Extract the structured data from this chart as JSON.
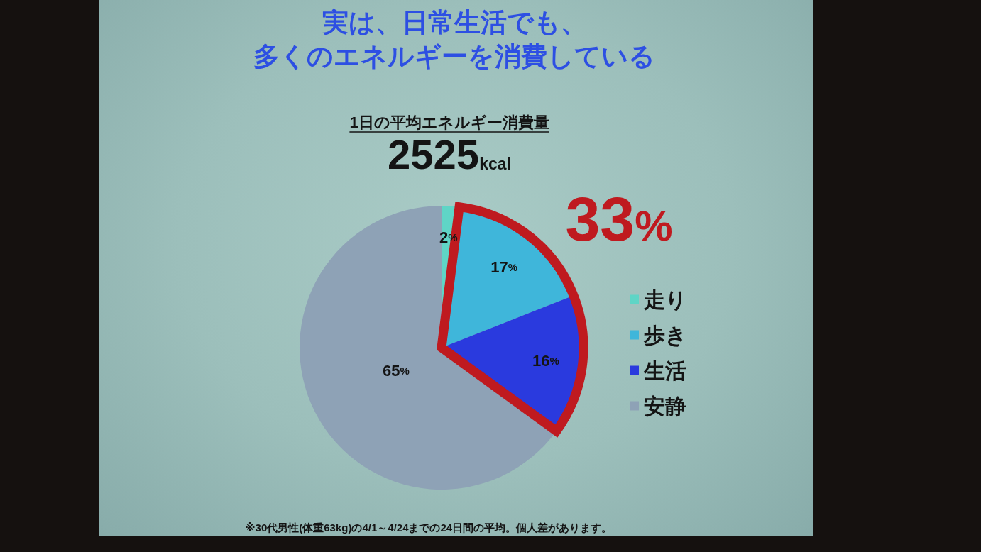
{
  "chart_data": {
    "type": "pie",
    "title": "実は、日常生活でも、多くのエネルギーを消費している",
    "subtitle": "1日の平均エネルギー消費量",
    "categories": [
      "走り",
      "歩き",
      "生活",
      "安静"
    ],
    "values": [
      2,
      17,
      16,
      65
    ],
    "colors": [
      "#5fd5c6",
      "#3fb6da",
      "#2a3ade",
      "#8ea2b6"
    ],
    "value_labels": [
      "2%",
      "17%",
      "16%",
      "65%"
    ],
    "legend": "right",
    "annotations": [
      "2525kcal",
      "33%",
      "※30代男性(体重63kg)の4/1～4/24までの24日間の平均。個人差があります。"
    ]
  }
}
